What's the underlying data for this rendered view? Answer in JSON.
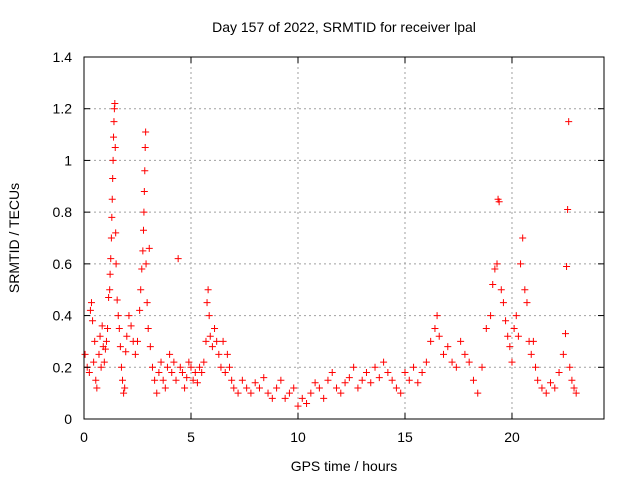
{
  "chart_data": {
    "type": "scatter",
    "title": "Day 157 of 2022, SRMTID for receiver lpal",
    "xlabel": "GPS time / hours",
    "ylabel": "SRMTID / TECUs",
    "xlim": [
      0,
      24.3
    ],
    "ylim": [
      0,
      1.4
    ],
    "xticks": [
      0,
      5,
      10,
      15,
      20
    ],
    "xtick_labels": [
      "0",
      "5",
      "10",
      "15",
      "20"
    ],
    "yticks": [
      0,
      0.2,
      0.4,
      0.6,
      0.8,
      1.0,
      1.2,
      1.4
    ],
    "ytick_labels": [
      "0",
      "0.2",
      "0.4",
      "0.6",
      "0.8",
      "1",
      "1.2",
      "1.4"
    ],
    "grid": true,
    "marker": "+",
    "color": "#ff0000",
    "series": [
      {
        "name": "SRMTID",
        "points": [
          [
            0.05,
            0.25
          ],
          [
            0.15,
            0.2
          ],
          [
            0.25,
            0.18
          ],
          [
            0.3,
            0.42
          ],
          [
            0.35,
            0.45
          ],
          [
            0.4,
            0.38
          ],
          [
            0.45,
            0.22
          ],
          [
            0.5,
            0.3
          ],
          [
            0.55,
            0.15
          ],
          [
            0.6,
            0.12
          ],
          [
            0.7,
            0.25
          ],
          [
            0.75,
            0.32
          ],
          [
            0.8,
            0.2
          ],
          [
            0.85,
            0.36
          ],
          [
            0.9,
            0.28
          ],
          [
            0.95,
            0.22
          ],
          [
            1.0,
            0.27
          ],
          [
            1.05,
            0.3
          ],
          [
            1.1,
            0.35
          ],
          [
            1.15,
            0.47
          ],
          [
            1.2,
            0.5
          ],
          [
            1.22,
            0.56
          ],
          [
            1.25,
            0.62
          ],
          [
            1.28,
            0.7
          ],
          [
            1.3,
            0.78
          ],
          [
            1.32,
            0.85
          ],
          [
            1.34,
            0.93
          ],
          [
            1.36,
            1.0
          ],
          [
            1.38,
            1.09
          ],
          [
            1.4,
            1.15
          ],
          [
            1.42,
            1.2
          ],
          [
            1.44,
            1.22
          ],
          [
            1.46,
            1.05
          ],
          [
            1.48,
            0.72
          ],
          [
            1.5,
            0.6
          ],
          [
            1.55,
            0.46
          ],
          [
            1.6,
            0.4
          ],
          [
            1.65,
            0.35
          ],
          [
            1.7,
            0.28
          ],
          [
            1.75,
            0.2
          ],
          [
            1.8,
            0.15
          ],
          [
            1.85,
            0.1
          ],
          [
            1.9,
            0.12
          ],
          [
            1.95,
            0.26
          ],
          [
            2.0,
            0.32
          ],
          [
            2.1,
            0.4
          ],
          [
            2.2,
            0.36
          ],
          [
            2.3,
            0.3
          ],
          [
            2.4,
            0.25
          ],
          [
            2.5,
            0.3
          ],
          [
            2.6,
            0.42
          ],
          [
            2.65,
            0.5
          ],
          [
            2.7,
            0.58
          ],
          [
            2.75,
            0.65
          ],
          [
            2.78,
            0.73
          ],
          [
            2.8,
            0.8
          ],
          [
            2.82,
            0.88
          ],
          [
            2.84,
            0.96
          ],
          [
            2.86,
            1.05
          ],
          [
            2.88,
            1.11
          ],
          [
            2.9,
            0.6
          ],
          [
            2.95,
            0.45
          ],
          [
            3.0,
            0.35
          ],
          [
            3.05,
            0.66
          ],
          [
            3.1,
            0.28
          ],
          [
            3.2,
            0.2
          ],
          [
            3.3,
            0.15
          ],
          [
            3.4,
            0.1
          ],
          [
            3.5,
            0.18
          ],
          [
            3.6,
            0.22
          ],
          [
            3.7,
            0.15
          ],
          [
            3.8,
            0.12
          ],
          [
            3.9,
            0.2
          ],
          [
            4.0,
            0.25
          ],
          [
            4.1,
            0.18
          ],
          [
            4.2,
            0.22
          ],
          [
            4.3,
            0.15
          ],
          [
            4.4,
            0.62
          ],
          [
            4.5,
            0.2
          ],
          [
            4.6,
            0.18
          ],
          [
            4.7,
            0.12
          ],
          [
            4.8,
            0.16
          ],
          [
            4.9,
            0.22
          ],
          [
            5.0,
            0.2
          ],
          [
            5.1,
            0.15
          ],
          [
            5.2,
            0.18
          ],
          [
            5.3,
            0.14
          ],
          [
            5.4,
            0.2
          ],
          [
            5.5,
            0.18
          ],
          [
            5.6,
            0.22
          ],
          [
            5.7,
            0.3
          ],
          [
            5.75,
            0.45
          ],
          [
            5.8,
            0.5
          ],
          [
            5.85,
            0.4
          ],
          [
            5.9,
            0.32
          ],
          [
            6.0,
            0.28
          ],
          [
            6.1,
            0.35
          ],
          [
            6.2,
            0.3
          ],
          [
            6.3,
            0.25
          ],
          [
            6.4,
            0.2
          ],
          [
            6.5,
            0.3
          ],
          [
            6.6,
            0.18
          ],
          [
            6.7,
            0.25
          ],
          [
            6.8,
            0.2
          ],
          [
            6.9,
            0.15
          ],
          [
            7.0,
            0.12
          ],
          [
            7.2,
            0.1
          ],
          [
            7.4,
            0.15
          ],
          [
            7.6,
            0.12
          ],
          [
            7.8,
            0.1
          ],
          [
            8.0,
            0.14
          ],
          [
            8.2,
            0.12
          ],
          [
            8.4,
            0.16
          ],
          [
            8.6,
            0.1
          ],
          [
            8.8,
            0.08
          ],
          [
            9.0,
            0.12
          ],
          [
            9.2,
            0.15
          ],
          [
            9.4,
            0.08
          ],
          [
            9.6,
            0.1
          ],
          [
            9.8,
            0.12
          ],
          [
            10.0,
            0.05
          ],
          [
            10.2,
            0.08
          ],
          [
            10.4,
            0.06
          ],
          [
            10.6,
            0.1
          ],
          [
            10.8,
            0.14
          ],
          [
            11.0,
            0.12
          ],
          [
            11.2,
            0.08
          ],
          [
            11.4,
            0.15
          ],
          [
            11.6,
            0.18
          ],
          [
            11.8,
            0.12
          ],
          [
            12.0,
            0.1
          ],
          [
            12.2,
            0.14
          ],
          [
            12.4,
            0.16
          ],
          [
            12.6,
            0.2
          ],
          [
            12.8,
            0.12
          ],
          [
            13.0,
            0.15
          ],
          [
            13.2,
            0.18
          ],
          [
            13.4,
            0.14
          ],
          [
            13.6,
            0.2
          ],
          [
            13.8,
            0.16
          ],
          [
            14.0,
            0.22
          ],
          [
            14.2,
            0.18
          ],
          [
            14.4,
            0.15
          ],
          [
            14.6,
            0.12
          ],
          [
            14.8,
            0.1
          ],
          [
            15.0,
            0.18
          ],
          [
            15.2,
            0.15
          ],
          [
            15.4,
            0.2
          ],
          [
            15.6,
            0.14
          ],
          [
            15.8,
            0.18
          ],
          [
            16.0,
            0.22
          ],
          [
            16.2,
            0.3
          ],
          [
            16.4,
            0.35
          ],
          [
            16.5,
            0.4
          ],
          [
            16.6,
            0.32
          ],
          [
            16.8,
            0.25
          ],
          [
            17.0,
            0.28
          ],
          [
            17.2,
            0.22
          ],
          [
            17.4,
            0.2
          ],
          [
            17.6,
            0.3
          ],
          [
            17.8,
            0.25
          ],
          [
            18.0,
            0.22
          ],
          [
            18.2,
            0.15
          ],
          [
            18.4,
            0.1
          ],
          [
            18.6,
            0.2
          ],
          [
            18.8,
            0.35
          ],
          [
            19.0,
            0.4
          ],
          [
            19.1,
            0.52
          ],
          [
            19.2,
            0.58
          ],
          [
            19.3,
            0.6
          ],
          [
            19.35,
            0.85
          ],
          [
            19.4,
            0.84
          ],
          [
            19.5,
            0.5
          ],
          [
            19.6,
            0.45
          ],
          [
            19.7,
            0.38
          ],
          [
            19.8,
            0.32
          ],
          [
            19.9,
            0.28
          ],
          [
            20.0,
            0.22
          ],
          [
            20.1,
            0.35
          ],
          [
            20.2,
            0.4
          ],
          [
            20.3,
            0.32
          ],
          [
            20.4,
            0.6
          ],
          [
            20.5,
            0.7
          ],
          [
            20.6,
            0.5
          ],
          [
            20.7,
            0.45
          ],
          [
            20.8,
            0.3
          ],
          [
            20.9,
            0.25
          ],
          [
            21.0,
            0.3
          ],
          [
            21.1,
            0.2
          ],
          [
            21.2,
            0.15
          ],
          [
            21.4,
            0.12
          ],
          [
            21.6,
            0.1
          ],
          [
            21.8,
            0.14
          ],
          [
            22.0,
            0.12
          ],
          [
            22.2,
            0.18
          ],
          [
            22.4,
            0.25
          ],
          [
            22.5,
            0.33
          ],
          [
            22.55,
            0.59
          ],
          [
            22.6,
            0.81
          ],
          [
            22.65,
            1.15
          ],
          [
            22.7,
            0.2
          ],
          [
            22.8,
            0.15
          ],
          [
            22.9,
            0.12
          ],
          [
            23.0,
            0.1
          ]
        ]
      }
    ]
  }
}
